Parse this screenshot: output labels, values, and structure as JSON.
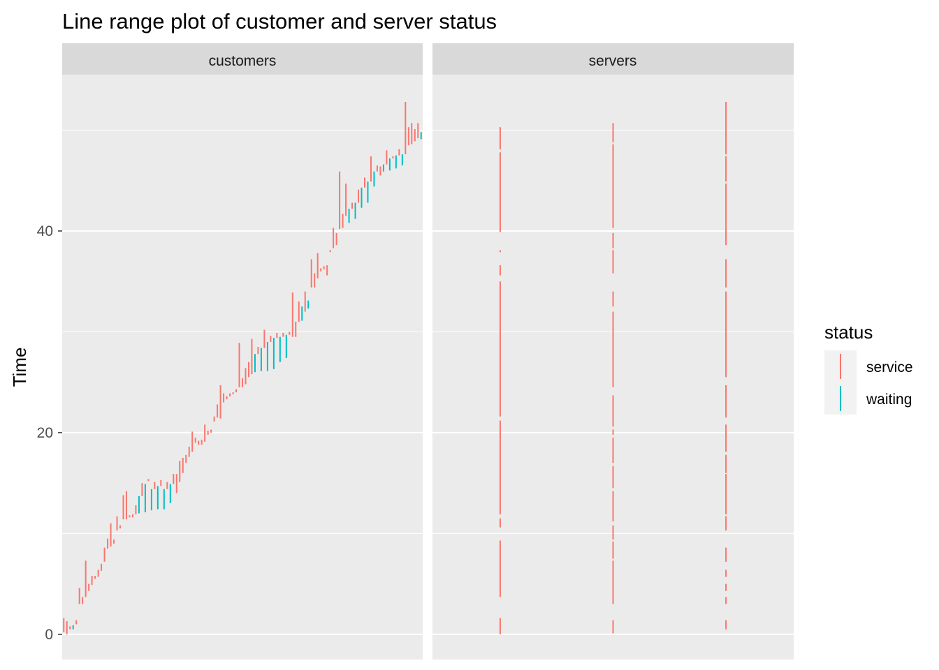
{
  "chart_data": {
    "type": "linerange",
    "title": "Line range plot of customer and server status",
    "ylabel": "Time",
    "xlabel": "",
    "ylim": [
      -2.5,
      55.5
    ],
    "y_ticks": [
      0,
      20,
      40
    ],
    "grid": true,
    "colors": {
      "service": "#F8766D",
      "waiting": "#00BFC4"
    },
    "legend": {
      "title": "status",
      "position": "right",
      "entries": [
        "service",
        "waiting"
      ]
    },
    "facets": [
      {
        "label": "customers",
        "ranges": [
          [
            1,
            0.2,
            1.6,
            "service"
          ],
          [
            2,
            0.0,
            1.3,
            "service"
          ],
          [
            3,
            0.5,
            0.8,
            "service"
          ],
          [
            4,
            0.5,
            0.9,
            "waiting"
          ],
          [
            5,
            1.0,
            1.4,
            "service"
          ],
          [
            6,
            3.0,
            4.6,
            "service"
          ],
          [
            7,
            3.0,
            3.7,
            "service"
          ],
          [
            8,
            3.7,
            7.3,
            "service"
          ],
          [
            9,
            4.3,
            5.0,
            "service"
          ],
          [
            10,
            4.9,
            5.8,
            "service"
          ],
          [
            11,
            5.5,
            5.8,
            "service"
          ],
          [
            12,
            5.7,
            6.4,
            "service"
          ],
          [
            13,
            6.3,
            7.0,
            "service"
          ],
          [
            14,
            7.2,
            8.6,
            "service"
          ],
          [
            15,
            8.5,
            9.5,
            "service"
          ],
          [
            16,
            8.7,
            11.0,
            "service"
          ],
          [
            17,
            9.0,
            9.4,
            "service"
          ],
          [
            18,
            10.3,
            11.7,
            "service"
          ],
          [
            19,
            10.5,
            10.8,
            "service"
          ],
          [
            20,
            11.4,
            13.8,
            "service"
          ],
          [
            21,
            11.4,
            14.2,
            "service"
          ],
          [
            22,
            11.6,
            11.8,
            "service"
          ],
          [
            23,
            11.6,
            11.9,
            "service"
          ],
          [
            24,
            11.9,
            12.8,
            "service"
          ],
          [
            25,
            12.0,
            13.7,
            "waiting"
          ],
          [
            26,
            13.7,
            15.0,
            "service"
          ],
          [
            27,
            12.1,
            14.9,
            "waiting"
          ],
          [
            28,
            15.2,
            15.4,
            "service"
          ],
          [
            29,
            12.3,
            14.4,
            "waiting"
          ],
          [
            30,
            14.4,
            15.1,
            "service"
          ],
          [
            31,
            12.4,
            14.7,
            "waiting"
          ],
          [
            32,
            14.7,
            15.3,
            "service"
          ],
          [
            33,
            12.4,
            14.4,
            "waiting"
          ],
          [
            34,
            14.4,
            15.1,
            "service"
          ],
          [
            35,
            13.0,
            14.9,
            "waiting"
          ],
          [
            36,
            14.9,
            15.9,
            "service"
          ],
          [
            37,
            14.0,
            15.9,
            "service"
          ],
          [
            38,
            15.1,
            17.2,
            "service"
          ],
          [
            39,
            16.0,
            17.5,
            "service"
          ],
          [
            40,
            17.0,
            17.8,
            "service"
          ],
          [
            41,
            17.6,
            18.6,
            "service"
          ],
          [
            42,
            18.1,
            20.1,
            "service"
          ],
          [
            43,
            19.0,
            19.5,
            "service"
          ],
          [
            44,
            18.8,
            19.2,
            "service"
          ],
          [
            45,
            18.8,
            19.3,
            "service"
          ],
          [
            46,
            19.1,
            20.8,
            "service"
          ],
          [
            47,
            19.8,
            20.2,
            "service"
          ],
          [
            48,
            20.0,
            20.3,
            "service"
          ],
          [
            49,
            21.1,
            21.6,
            "service"
          ],
          [
            50,
            21.5,
            22.8,
            "service"
          ],
          [
            51,
            21.4,
            24.7,
            "service"
          ],
          [
            52,
            23.0,
            23.9,
            "service"
          ],
          [
            53,
            23.3,
            23.6,
            "service"
          ],
          [
            54,
            23.6,
            23.9,
            "service"
          ],
          [
            55,
            23.8,
            24.0,
            "service"
          ],
          [
            56,
            24.0,
            24.3,
            "service"
          ],
          [
            57,
            24.5,
            28.9,
            "service"
          ],
          [
            58,
            24.5,
            25.4,
            "service"
          ],
          [
            59,
            24.8,
            26.4,
            "service"
          ],
          [
            60,
            25.5,
            27.0,
            "service"
          ],
          [
            61,
            25.8,
            29.3,
            "service"
          ],
          [
            62,
            26.0,
            27.8,
            "waiting"
          ],
          [
            63,
            27.8,
            28.5,
            "service"
          ],
          [
            64,
            26.1,
            28.4,
            "waiting"
          ],
          [
            65,
            28.4,
            30.2,
            "service"
          ],
          [
            66,
            26.1,
            29.0,
            "waiting"
          ],
          [
            67,
            29.0,
            29.6,
            "service"
          ],
          [
            68,
            26.3,
            29.4,
            "waiting"
          ],
          [
            69,
            29.4,
            29.9,
            "service"
          ],
          [
            70,
            27.0,
            29.5,
            "waiting"
          ],
          [
            71,
            29.5,
            29.9,
            "service"
          ],
          [
            72,
            27.4,
            29.7,
            "waiting"
          ],
          [
            73,
            29.7,
            30.0,
            "service"
          ],
          [
            74,
            29.5,
            33.9,
            "service"
          ],
          [
            75,
            29.5,
            31.0,
            "service"
          ],
          [
            76,
            31.0,
            33.0,
            "service"
          ],
          [
            77,
            31.1,
            32.5,
            "waiting"
          ],
          [
            78,
            32.0,
            34.0,
            "service"
          ],
          [
            79,
            32.3,
            33.1,
            "waiting"
          ],
          [
            80,
            34.4,
            37.2,
            "service"
          ],
          [
            81,
            34.4,
            35.8,
            "service"
          ],
          [
            82,
            35.3,
            37.8,
            "service"
          ],
          [
            83,
            36.0,
            36.3,
            "service"
          ],
          [
            84,
            36.2,
            36.5,
            "service"
          ],
          [
            85,
            35.6,
            36.6,
            "service"
          ],
          [
            86,
            37.9,
            38.1,
            "service"
          ],
          [
            87,
            38.3,
            40.3,
            "service"
          ],
          [
            88,
            38.6,
            39.8,
            "service"
          ],
          [
            89,
            40.2,
            45.9,
            "service"
          ],
          [
            90,
            40.3,
            41.7,
            "service"
          ],
          [
            91,
            41.5,
            44.7,
            "service"
          ],
          [
            92,
            40.8,
            42.2,
            "waiting"
          ],
          [
            93,
            42.2,
            42.8,
            "service"
          ],
          [
            94,
            41.2,
            42.8,
            "waiting"
          ],
          [
            95,
            42.8,
            44.1,
            "service"
          ],
          [
            96,
            42.3,
            44.3,
            "waiting"
          ],
          [
            97,
            44.3,
            45.3,
            "service"
          ],
          [
            98,
            42.8,
            44.9,
            "waiting"
          ],
          [
            99,
            44.9,
            47.4,
            "service"
          ],
          [
            100,
            44.4,
            45.9,
            "waiting"
          ],
          [
            101,
            45.9,
            46.5,
            "service"
          ],
          [
            102,
            45.5,
            46.4,
            "service"
          ],
          [
            103,
            45.9,
            46.6,
            "waiting"
          ],
          [
            104,
            46.6,
            48.0,
            "service"
          ],
          [
            105,
            46.0,
            47.2,
            "waiting"
          ],
          [
            106,
            47.2,
            47.4,
            "service"
          ],
          [
            107,
            46.2,
            47.5,
            "waiting"
          ],
          [
            108,
            47.5,
            48.1,
            "service"
          ],
          [
            109,
            46.5,
            47.6,
            "waiting"
          ],
          [
            110,
            47.6,
            52.8,
            "service"
          ],
          [
            111,
            48.5,
            50.3,
            "service"
          ],
          [
            112,
            48.6,
            50.7,
            "service"
          ],
          [
            113,
            48.9,
            50.1,
            "service"
          ],
          [
            114,
            49.2,
            50.7,
            "service"
          ],
          [
            115,
            49.1,
            49.8,
            "waiting"
          ]
        ]
      },
      {
        "label": "servers",
        "ranges": [
          [
            1,
            0.0,
            1.6,
            "service"
          ],
          [
            1,
            3.7,
            9.3,
            "service"
          ],
          [
            1,
            10.6,
            11.5,
            "service"
          ],
          [
            1,
            11.9,
            21.2,
            "service"
          ],
          [
            1,
            21.6,
            35.0,
            "service"
          ],
          [
            1,
            35.6,
            36.6,
            "service"
          ],
          [
            1,
            37.9,
            38.1,
            "service"
          ],
          [
            1,
            39.9,
            47.8,
            "service"
          ],
          [
            1,
            48.1,
            50.3,
            "service"
          ],
          [
            2,
            0.1,
            1.4,
            "service"
          ],
          [
            2,
            3.0,
            7.3,
            "service"
          ],
          [
            2,
            7.5,
            9.2,
            "service"
          ],
          [
            2,
            9.4,
            10.8,
            "service"
          ],
          [
            2,
            11.2,
            14.2,
            "service"
          ],
          [
            2,
            14.5,
            16.7,
            "service"
          ],
          [
            2,
            17.0,
            19.5,
            "service"
          ],
          [
            2,
            19.8,
            20.3,
            "service"
          ],
          [
            2,
            20.6,
            23.7,
            "service"
          ],
          [
            2,
            24.5,
            32.0,
            "service"
          ],
          [
            2,
            32.5,
            34.0,
            "service"
          ],
          [
            2,
            35.8,
            38.1,
            "service"
          ],
          [
            2,
            38.3,
            39.8,
            "service"
          ],
          [
            2,
            40.3,
            48.6,
            "service"
          ],
          [
            2,
            48.8,
            50.7,
            "service"
          ],
          [
            3,
            0.5,
            1.4,
            "service"
          ],
          [
            3,
            3.0,
            3.7,
            "service"
          ],
          [
            3,
            4.3,
            5.0,
            "service"
          ],
          [
            3,
            5.7,
            6.4,
            "service"
          ],
          [
            3,
            7.2,
            8.6,
            "service"
          ],
          [
            3,
            10.3,
            11.7,
            "service"
          ],
          [
            3,
            11.9,
            15.9,
            "service"
          ],
          [
            3,
            16.0,
            17.8,
            "service"
          ],
          [
            3,
            18.1,
            20.8,
            "service"
          ],
          [
            3,
            21.5,
            24.7,
            "service"
          ],
          [
            3,
            25.5,
            29.9,
            "service"
          ],
          [
            3,
            29.9,
            34.0,
            "service"
          ],
          [
            3,
            34.4,
            37.2,
            "service"
          ],
          [
            3,
            38.6,
            44.7,
            "service"
          ],
          [
            3,
            44.9,
            47.4,
            "service"
          ],
          [
            3,
            47.6,
            52.8,
            "service"
          ]
        ]
      }
    ]
  }
}
